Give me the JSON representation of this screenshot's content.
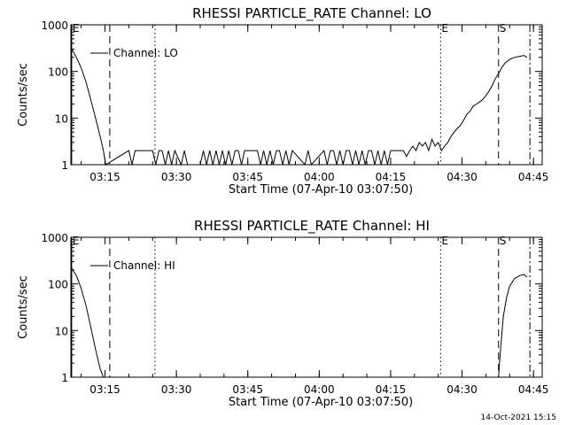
{
  "footer_timestamp": "14-Oct-2021 15:15",
  "chart_data": [
    {
      "type": "line",
      "title": "RHESSI PARTICLE_RATE Channel: LO",
      "xlabel": "Start Time (07-Apr-10 03:07:50)",
      "ylabel": "Counts/sec",
      "legend": "Channel: LO",
      "legend_position": "top-left",
      "y_scale": "log",
      "xlim": [
        "03:07:50",
        "04:46:50"
      ],
      "ylim": [
        1,
        1000
      ],
      "x_ticks": [
        "03:15",
        "03:30",
        "03:45",
        "04:00",
        "04:15",
        "04:30",
        "04:45"
      ],
      "y_ticks": [
        "1",
        "10",
        "100",
        "1000"
      ],
      "markers": [
        {
          "label": "E",
          "time": "03:08:00",
          "style": "solid"
        },
        {
          "label": "",
          "time": "03:16:00",
          "style": "dashed"
        },
        {
          "label": "",
          "time": "03:25:30",
          "style": "dotted"
        },
        {
          "label": "E",
          "time": "04:25:30",
          "style": "dotted"
        },
        {
          "label": "S",
          "time": "04:37:40",
          "style": "dashed"
        },
        {
          "label": "",
          "time": "04:44:15",
          "style": "dashdot"
        }
      ],
      "series": [
        {
          "name": "Channel: LO",
          "x": [
            "03:07:50",
            "03:09:00",
            "03:10:00",
            "03:11:00",
            "03:12:00",
            "03:13:00",
            "03:14:00",
            "03:14:40",
            "03:15:10",
            "03:20:00",
            "03:20:40",
            "03:21:20",
            "03:25:00",
            "03:25:40",
            "03:26:20",
            "03:27:00",
            "03:27:40",
            "03:28:20",
            "03:29:00",
            "03:29:40",
            "03:31:00",
            "03:31:40",
            "03:32:20",
            "03:35:00",
            "03:35:40",
            "03:36:20",
            "03:37:00",
            "03:37:40",
            "03:38:20",
            "03:39:00",
            "03:39:40",
            "03:40:20",
            "03:41:00",
            "03:41:40",
            "03:42:20",
            "03:43:00",
            "03:43:40",
            "03:44:20",
            "03:47:00",
            "03:47:40",
            "03:48:20",
            "03:49:00",
            "03:49:40",
            "03:50:20",
            "03:51:00",
            "03:51:40",
            "03:52:20",
            "03:53:00",
            "03:53:40",
            "03:54:20",
            "03:57:00",
            "03:57:40",
            "03:58:20",
            "04:01:00",
            "04:01:40",
            "04:02:20",
            "04:03:00",
            "04:03:40",
            "04:04:20",
            "04:05:00",
            "04:05:40",
            "04:06:20",
            "04:07:00",
            "04:07:40",
            "04:08:20",
            "04:09:00",
            "04:09:40",
            "04:10:20",
            "04:11:00",
            "04:11:40",
            "04:12:20",
            "04:13:00",
            "04:13:40",
            "04:14:20",
            "04:15:00",
            "04:15:40",
            "04:16:20",
            "04:17:00",
            "04:17:40",
            "04:18:20",
            "04:19:00",
            "04:19:40",
            "04:20:20",
            "04:21:00",
            "04:21:40",
            "04:22:20",
            "04:23:00",
            "04:23:40",
            "04:24:20",
            "04:25:00",
            "04:25:40",
            "04:26:20",
            "04:27:00",
            "04:27:40",
            "04:28:20",
            "04:29:00",
            "04:29:40",
            "04:30:20",
            "04:31:00",
            "04:31:40",
            "04:32:20",
            "04:33:00",
            "04:33:40",
            "04:34:20",
            "04:35:00",
            "04:35:40",
            "04:36:20",
            "04:37:00",
            "04:37:40",
            "04:38:20",
            "04:39:00",
            "04:40:00",
            "04:41:00",
            "04:42:00",
            "04:43:00",
            "04:43:40"
          ],
          "values": [
            330,
            200,
            120,
            60,
            25,
            10,
            4,
            2,
            1,
            2,
            1,
            2,
            2,
            1,
            2,
            2,
            1,
            2,
            1,
            2,
            1,
            2,
            1,
            1,
            2,
            1,
            2,
            1,
            2,
            1,
            2,
            1,
            2,
            1,
            2,
            2,
            1,
            2,
            2,
            1,
            2,
            1,
            2,
            1,
            2,
            2,
            1,
            2,
            1,
            2,
            1,
            2,
            1,
            2,
            1,
            2,
            2,
            1,
            2,
            1,
            2,
            2,
            1,
            2,
            1,
            2,
            1,
            2,
            2,
            1,
            2,
            1,
            2,
            1,
            2,
            2,
            2,
            2,
            2,
            1.5,
            2,
            2.5,
            2,
            3,
            2.5,
            3,
            2,
            3.5,
            2.5,
            3,
            2,
            2.5,
            3,
            4,
            5,
            6,
            7,
            9,
            12,
            14,
            18,
            20,
            22,
            25,
            30,
            38,
            50,
            70,
            90,
            120,
            150,
            180,
            200,
            210,
            220,
            200
          ]
        }
      ]
    },
    {
      "type": "line",
      "title": "RHESSI PARTICLE_RATE Channel: HI",
      "xlabel": "Start Time (07-Apr-10 03:07:50)",
      "ylabel": "Counts/sec",
      "legend": "Channel: HI",
      "legend_position": "top-left",
      "y_scale": "log",
      "xlim": [
        "03:07:50",
        "04:46:50"
      ],
      "ylim": [
        1,
        1000
      ],
      "x_ticks": [
        "03:15",
        "03:30",
        "03:45",
        "04:00",
        "04:15",
        "04:30",
        "04:45"
      ],
      "y_ticks": [
        "1",
        "10",
        "100",
        "1000"
      ],
      "markers": [
        {
          "label": "E",
          "time": "03:08:00",
          "style": "solid"
        },
        {
          "label": "",
          "time": "03:16:00",
          "style": "dashed"
        },
        {
          "label": "",
          "time": "03:25:30",
          "style": "dotted"
        },
        {
          "label": "E",
          "time": "04:25:30",
          "style": "dotted"
        },
        {
          "label": "S",
          "time": "04:37:40",
          "style": "dashed"
        },
        {
          "label": "",
          "time": "04:44:15",
          "style": "dashdot"
        }
      ],
      "series": [
        {
          "name": "Channel: HI",
          "x": [
            "03:07:50",
            "03:09:00",
            "03:10:00",
            "03:11:00",
            "03:12:00",
            "03:13:00",
            "03:14:00",
            "03:14:40",
            "04:37:40",
            "04:38:00",
            "04:38:40",
            "04:39:20",
            "04:40:00",
            "04:41:00",
            "04:42:00",
            "04:43:00",
            "04:43:40"
          ],
          "values": [
            230,
            150,
            80,
            35,
            12,
            4,
            1.5,
            1,
            1,
            3,
            20,
            50,
            90,
            130,
            150,
            160,
            140
          ]
        }
      ]
    }
  ]
}
